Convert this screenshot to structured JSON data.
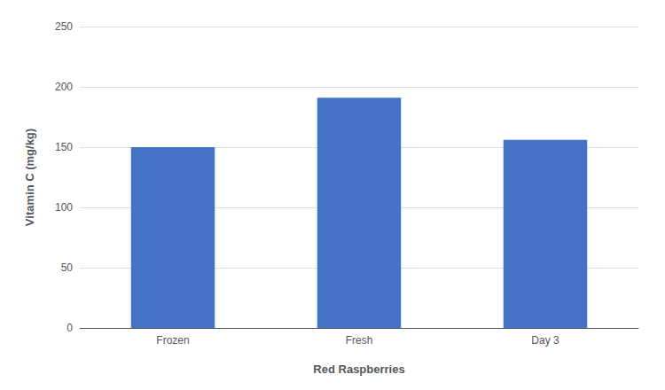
{
  "chart_data": {
    "type": "bar",
    "categories": [
      "Frozen",
      "Fresh",
      "Day 3"
    ],
    "values": [
      150,
      191,
      156
    ],
    "color": "#4472C4",
    "xlabel": "Red Raspberries",
    "ylabel": "Vitamin C (mg/kg)",
    "ylim": [
      0,
      250
    ],
    "yticks": [
      0,
      50,
      100,
      150,
      200,
      250
    ],
    "grid": true
  }
}
